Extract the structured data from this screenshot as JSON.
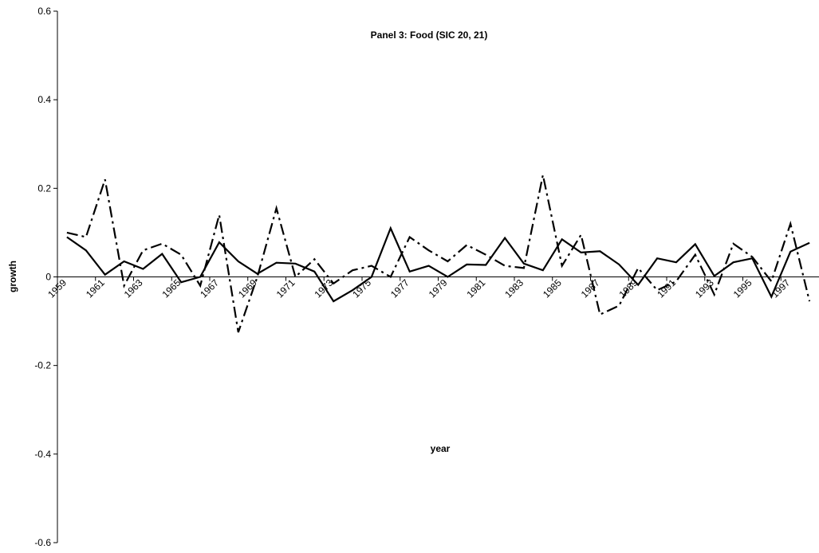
{
  "chart_data": {
    "type": "line",
    "title": "Panel 3: Food (SIC 20, 21)",
    "xlabel": "year",
    "ylabel": "growth",
    "categories": [
      "1959",
      null,
      "1961",
      null,
      "1963",
      null,
      "1965",
      null,
      "1967",
      null,
      "1969",
      null,
      "1971",
      null,
      "1973",
      null,
      "1975",
      null,
      "1977",
      null,
      "1979",
      null,
      "1981",
      null,
      "1983",
      null,
      "1985",
      null,
      "1987",
      null,
      "1989",
      null,
      "1991",
      null,
      "1993",
      null,
      "1995",
      null,
      "1997",
      null
    ],
    "series": [
      {
        "color": "#000000",
        "dash": "solid",
        "values": [
          0.09,
          0.06,
          0.005,
          0.035,
          0.018,
          0.052,
          -0.012,
          0.0,
          0.078,
          0.035,
          0.007,
          0.032,
          0.03,
          0.012,
          -0.055,
          -0.03,
          0.0,
          0.11,
          0.012,
          0.025,
          0.0,
          0.028,
          0.027,
          0.088,
          0.03,
          0.015,
          0.085,
          0.055,
          0.058,
          0.028,
          -0.018,
          0.042,
          0.033,
          0.074,
          0.002,
          0.033,
          0.042,
          -0.045,
          0.057,
          0.077
        ]
      },
      {
        "color": "#000000",
        "dash": "dashdot",
        "values": [
          0.1,
          0.09,
          0.22,
          -0.02,
          0.06,
          0.075,
          0.05,
          -0.02,
          0.14,
          -0.125,
          0.0,
          0.155,
          0.0,
          0.04,
          -0.015,
          0.015,
          0.025,
          0.0,
          0.09,
          0.06,
          0.035,
          0.072,
          0.05,
          0.025,
          0.02,
          0.23,
          0.025,
          0.095,
          -0.085,
          -0.065,
          0.02,
          -0.03,
          -0.01,
          0.05,
          -0.04,
          0.075,
          0.045,
          -0.01,
          0.12,
          -0.055
        ]
      }
    ],
    "ylim": [
      -0.6,
      0.6
    ],
    "yticks": [
      -0.6,
      -0.4,
      -0.2,
      0,
      0.2,
      0.4,
      0.6
    ],
    "grid": false
  }
}
